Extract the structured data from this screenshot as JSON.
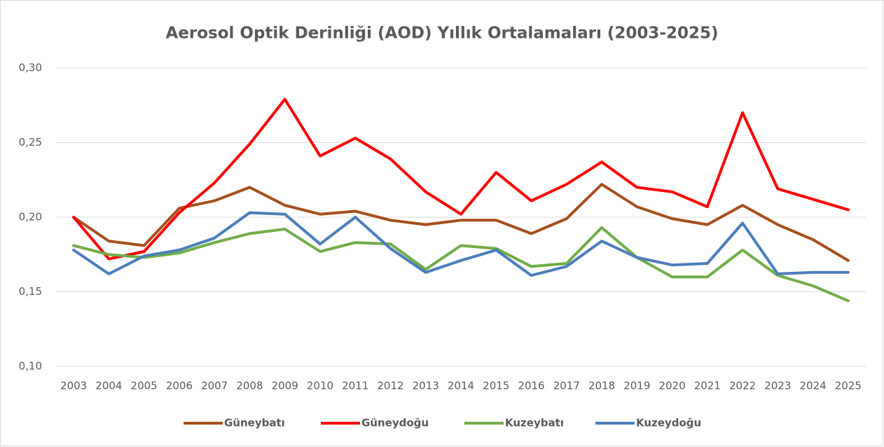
{
  "chart_data": {
    "type": "line",
    "title": "Aerosol Optik Derinliği (AOD) Yıllık Ortalamaları (2003-2025)",
    "categories": [
      "2003",
      "2004",
      "2005",
      "2006",
      "2007",
      "2008",
      "2009",
      "2010",
      "2011",
      "2012",
      "2013",
      "2014",
      "2015",
      "2016",
      "2017",
      "2018",
      "2019",
      "2020",
      "2021",
      "2022",
      "2023",
      "2024",
      "2025"
    ],
    "series": [
      {
        "name": "Güneybatı",
        "color": "#a5501b",
        "values": [
          0.2,
          0.184,
          0.181,
          0.206,
          0.211,
          0.22,
          0.208,
          0.202,
          0.204,
          0.198,
          0.195,
          0.198,
          0.198,
          0.189,
          0.199,
          0.222,
          0.207,
          0.199,
          0.195,
          0.208,
          0.195,
          0.185,
          0.171
        ]
      },
      {
        "name": "Güneydoğu",
        "color": "#ff0000",
        "values": [
          0.2,
          0.172,
          0.177,
          0.203,
          0.223,
          0.249,
          0.279,
          0.241,
          0.253,
          0.239,
          0.217,
          0.202,
          0.23,
          0.211,
          0.222,
          0.237,
          0.22,
          0.217,
          0.207,
          0.27,
          0.219,
          0.212,
          0.205
        ]
      },
      {
        "name": "Kuzeybatı",
        "color": "#70ad47",
        "values": [
          0.181,
          0.175,
          0.173,
          0.176,
          0.183,
          0.189,
          0.192,
          0.177,
          0.183,
          0.182,
          0.165,
          0.181,
          0.179,
          0.167,
          0.169,
          0.193,
          0.173,
          0.16,
          0.16,
          0.178,
          0.161,
          0.154,
          0.144
        ]
      },
      {
        "name": "Kuzeydoğu",
        "color": "#4a7ebb",
        "values": [
          0.178,
          0.162,
          0.174,
          0.178,
          0.186,
          0.203,
          0.202,
          0.182,
          0.2,
          0.179,
          0.163,
          0.171,
          0.178,
          0.161,
          0.167,
          0.184,
          0.173,
          0.168,
          0.169,
          0.196,
          0.162,
          0.163,
          0.163
        ]
      }
    ],
    "ylim": [
      0.1,
      0.3
    ],
    "yticks": [
      {
        "value": 0.1,
        "label": "0,10"
      },
      {
        "value": 0.15,
        "label": "0,15"
      },
      {
        "value": 0.2,
        "label": "0,20"
      },
      {
        "value": 0.25,
        "label": "0,25"
      },
      {
        "value": 0.3,
        "label": "0,30"
      }
    ],
    "grid": true,
    "legend": "bottom"
  }
}
